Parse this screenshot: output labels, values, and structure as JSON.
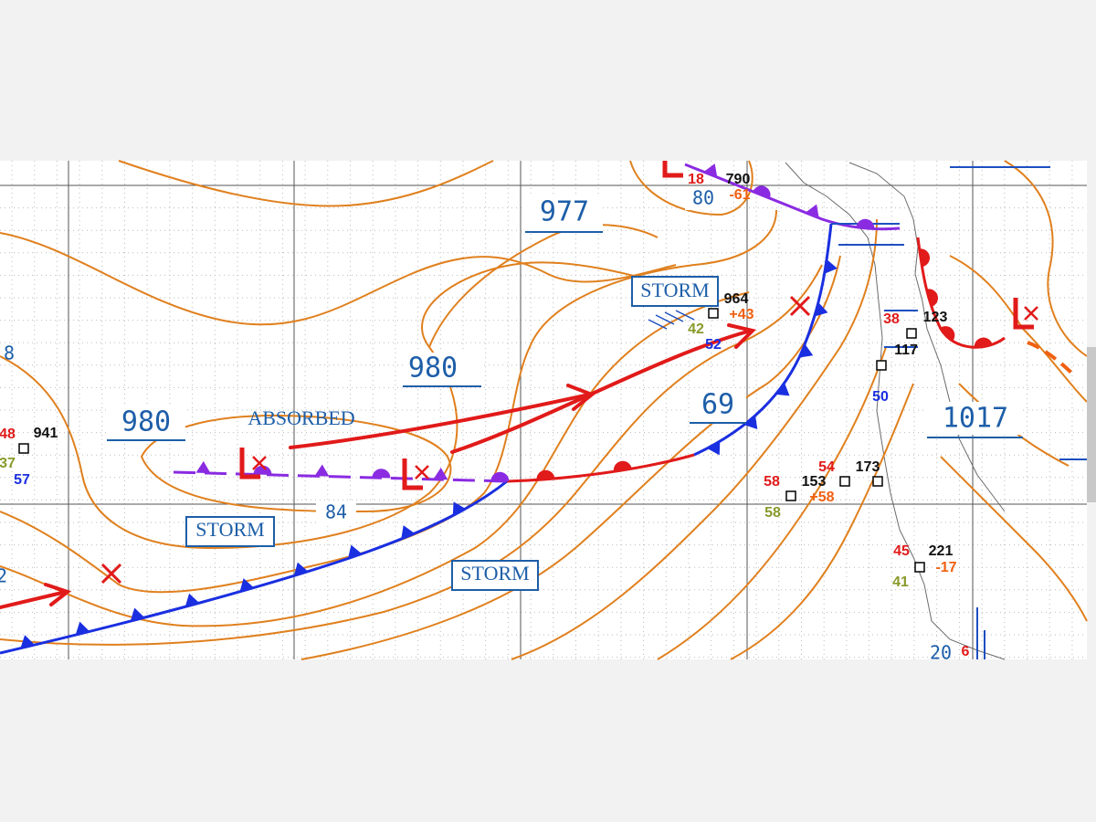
{
  "isobar_labels": [
    "977",
    "980",
    "980",
    "69",
    "1017",
    "84",
    "80",
    "8",
    "2",
    "20"
  ],
  "boxed_labels": [
    "STORM",
    "STORM",
    "STORM"
  ],
  "annotation": "ABSORBED",
  "station_values": [
    "18",
    "790",
    "-61",
    "964",
    "+43",
    "42",
    "52",
    "48",
    "941",
    "37",
    "57",
    "58",
    "153",
    "54",
    "173",
    "58",
    "+58",
    "221",
    "45",
    "41",
    "-17",
    "123",
    "117",
    "38",
    "50",
    "6"
  ]
}
